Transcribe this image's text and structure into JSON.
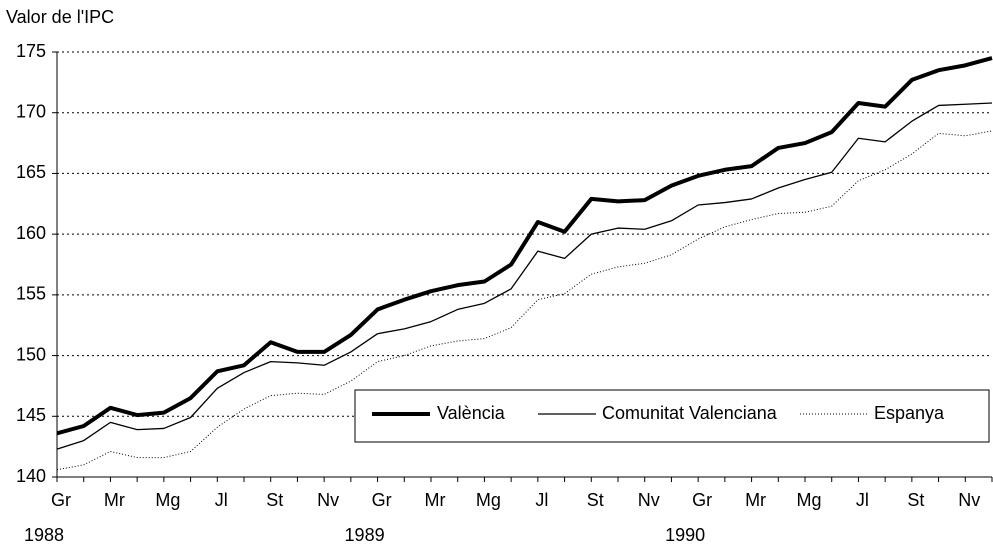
{
  "chart_data": {
    "type": "line",
    "y_label": "Valor de l'IPC",
    "categories": [
      "Gr",
      null,
      "Mr",
      null,
      "Mg",
      null,
      "Jl",
      null,
      "St",
      null,
      "Nv",
      null,
      "Gr",
      null,
      "Mr",
      null,
      "Mg",
      null,
      "Jl",
      null,
      "St",
      null,
      "Nv",
      null,
      "Gr",
      null,
      "Mr",
      null,
      "Mg",
      null,
      "Jl",
      null,
      "St",
      null,
      "Nv",
      null
    ],
    "years": [
      "1988",
      "1989",
      "1990"
    ],
    "series": [
      {
        "name": "València",
        "color": "#000000",
        "values": [
          143.6,
          144.2,
          145.7,
          145.1,
          145.3,
          146.5,
          148.7,
          149.2,
          151.1,
          150.3,
          150.3,
          151.7,
          153.8,
          154.6,
          155.3,
          155.8,
          156.1,
          157.5,
          161.0,
          160.2,
          162.9,
          162.7,
          162.8,
          164.0,
          164.8,
          165.3,
          165.6,
          167.1,
          167.5,
          168.4,
          170.8,
          170.5,
          172.7,
          173.5,
          173.9,
          174.5
        ]
      },
      {
        "name": "Comunitat Valenciana",
        "color": "#000000",
        "values": [
          142.3,
          143.0,
          144.5,
          143.9,
          144.0,
          144.9,
          147.3,
          148.6,
          149.5,
          149.4,
          149.2,
          150.3,
          151.8,
          152.2,
          152.8,
          153.8,
          154.3,
          155.5,
          158.6,
          158.0,
          160.0,
          160.5,
          160.4,
          161.1,
          162.4,
          162.6,
          162.9,
          163.8,
          164.5,
          165.1,
          167.9,
          167.6,
          169.3,
          170.6,
          170.7,
          170.8
        ]
      },
      {
        "name": "Espanya",
        "color": "#000000",
        "values": [
          140.6,
          141.0,
          142.1,
          141.6,
          141.6,
          142.1,
          144.1,
          145.6,
          146.7,
          146.9,
          146.8,
          147.9,
          149.5,
          150.0,
          150.8,
          151.2,
          151.4,
          152.3,
          154.6,
          155.1,
          156.7,
          157.3,
          157.6,
          158.3,
          159.6,
          160.6,
          161.2,
          161.7,
          161.8,
          162.3,
          164.4,
          165.3,
          166.6,
          168.3,
          168.1,
          168.5
        ]
      }
    ],
    "ylim": [
      140,
      175
    ],
    "yticks": [
      140,
      145,
      150,
      155,
      160,
      165,
      170,
      175
    ],
    "grid": true
  }
}
